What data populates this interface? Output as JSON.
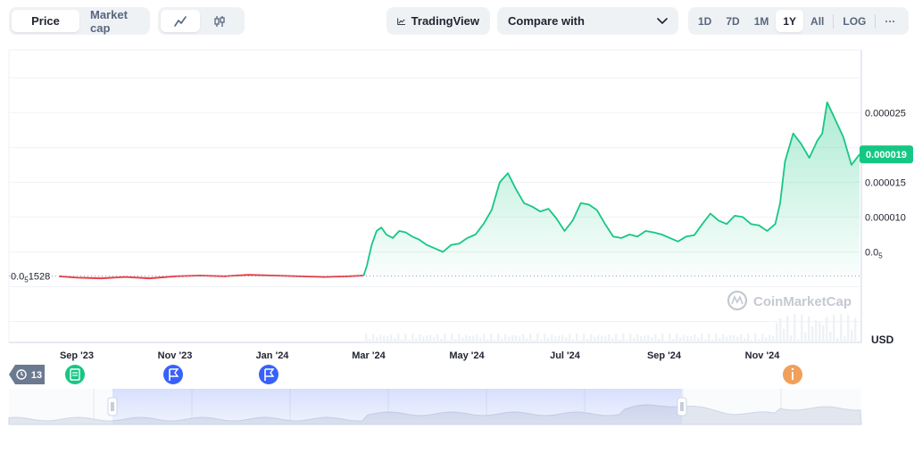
{
  "toolbar": {
    "type_options": [
      {
        "label": "Price",
        "active": true
      },
      {
        "label": "Market cap",
        "active": false
      }
    ],
    "style_options": [
      {
        "icon": "line-chart-icon",
        "active": true
      },
      {
        "icon": "candlestick-icon",
        "active": false
      }
    ],
    "tradingview_label": "TradingView",
    "compare_label": "Compare with",
    "ranges": [
      "1D",
      "7D",
      "1M",
      "1Y",
      "All"
    ],
    "active_range": "1Y",
    "log_label": "LOG",
    "more_label": "···"
  },
  "colors": {
    "up": "#16c784",
    "down": "#ea3943",
    "accent": "#3861fb",
    "badge": "#16c784",
    "event_gray": "#6b7a90",
    "event_orange": "#f0a05a"
  },
  "watermark": "CoinMarketCap",
  "currency_label": "USD",
  "events": {
    "count_label": "13",
    "markers": [
      {
        "date": "Sep '23",
        "kind": "document",
        "color": "#16c784"
      },
      {
        "date": "Nov '23",
        "kind": "flag",
        "color": "#3861fb"
      },
      {
        "date": "Jan '24",
        "kind": "flag",
        "color": "#3861fb"
      },
      {
        "date": "Nov '24",
        "kind": "info",
        "color": "#f0a05a"
      }
    ]
  },
  "chart_data": {
    "type": "area",
    "x_tick_labels": [
      "Sep '23",
      "Nov '23",
      "Jan '24",
      "Mar '24",
      "May '24",
      "Jul '24",
      "Sep '24",
      "Nov '24"
    ],
    "y_tick_labels": [
      "0.000025",
      "0.000015",
      "0.000010"
    ],
    "y_tick_values": [
      2.5e-05,
      1.5e-05,
      1e-05
    ],
    "y_extra_tick": {
      "prefix": "0.0",
      "sub": "5",
      "suffix": "",
      "value": 5e-06
    },
    "baseline_label": {
      "prefix": "0.0",
      "sub": "5",
      "suffix": "1528",
      "value": 1.528e-06
    },
    "current_price_label": "0.000019",
    "current_price": 1.9e-05,
    "ylim": [
      -8e-06,
      3.4e-05
    ],
    "series": [
      {
        "x": [
          "2023-08-25",
          "2023-09-05",
          "2023-09-20",
          "2023-10-05",
          "2023-10-20",
          "2023-11-05",
          "2023-11-20",
          "2023-12-05",
          "2023-12-20",
          "2024-01-05",
          "2024-01-20",
          "2024-02-05",
          "2024-02-20",
          "2024-02-29",
          "2024-03-02",
          "2024-03-05",
          "2024-03-08",
          "2024-03-11",
          "2024-03-14",
          "2024-03-18",
          "2024-03-22",
          "2024-03-26",
          "2024-03-30",
          "2024-04-03",
          "2024-04-08",
          "2024-04-13",
          "2024-04-18",
          "2024-04-23",
          "2024-04-28",
          "2024-05-03",
          "2024-05-08",
          "2024-05-13",
          "2024-05-18",
          "2024-05-23",
          "2024-05-28",
          "2024-06-02",
          "2024-06-07",
          "2024-06-12",
          "2024-06-17",
          "2024-06-22",
          "2024-06-27",
          "2024-07-02",
          "2024-07-07",
          "2024-07-12",
          "2024-07-17",
          "2024-07-22",
          "2024-07-27",
          "2024-08-01",
          "2024-08-06",
          "2024-08-11",
          "2024-08-16",
          "2024-08-21",
          "2024-08-26",
          "2024-08-31",
          "2024-09-05",
          "2024-09-10",
          "2024-09-15",
          "2024-09-20",
          "2024-09-25",
          "2024-09-30",
          "2024-10-05",
          "2024-10-10",
          "2024-10-15",
          "2024-10-20",
          "2024-10-25",
          "2024-10-30",
          "2024-11-04",
          "2024-11-09",
          "2024-11-12",
          "2024-11-15",
          "2024-11-20",
          "2024-11-25",
          "2024-11-30",
          "2024-12-05",
          "2024-12-08",
          "2024-12-11",
          "2024-12-16",
          "2024-12-21",
          "2024-12-26",
          "2024-12-31"
        ],
        "y": [
          1.5e-06,
          1.3e-06,
          1.2e-06,
          1.4e-06,
          1.2e-06,
          1.5e-06,
          1.6e-06,
          1.5e-06,
          1.7e-06,
          1.6e-06,
          1.5e-06,
          1.4e-06,
          1.5e-06,
          1.6e-06,
          3e-06,
          6e-06,
          8e-06,
          8.5e-06,
          7.5e-06,
          7e-06,
          8e-06,
          7.8e-06,
          7.2e-06,
          6.8e-06,
          6e-06,
          5.5e-06,
          5e-06,
          6e-06,
          6.2e-06,
          7e-06,
          7.5e-06,
          9e-06,
          1.1e-05,
          1.5e-05,
          1.63e-05,
          1.4e-05,
          1.2e-05,
          1.15e-05,
          1.08e-05,
          1.12e-05,
          9.8e-06,
          8e-06,
          9.5e-06,
          1.2e-05,
          1.18e-05,
          1.1e-05,
          9e-06,
          7.2e-06,
          7e-06,
          7.5e-06,
          7.2e-06,
          8e-06,
          7.8e-06,
          7.5e-06,
          7e-06,
          6.5e-06,
          7.2e-06,
          7.4e-06,
          9e-06,
          1.05e-05,
          9.5e-06,
          9e-06,
          1.02e-05,
          1e-05,
          9e-06,
          8.8e-06,
          8e-06,
          9e-06,
          1.2e-05,
          1.8e-05,
          2.2e-05,
          2.05e-05,
          1.85e-05,
          2.1e-05,
          2.2e-05,
          2.65e-05,
          2.4e-05,
          2.15e-05,
          1.75e-05,
          1.9e-05
        ]
      }
    ],
    "grid": true,
    "legend": "none"
  }
}
